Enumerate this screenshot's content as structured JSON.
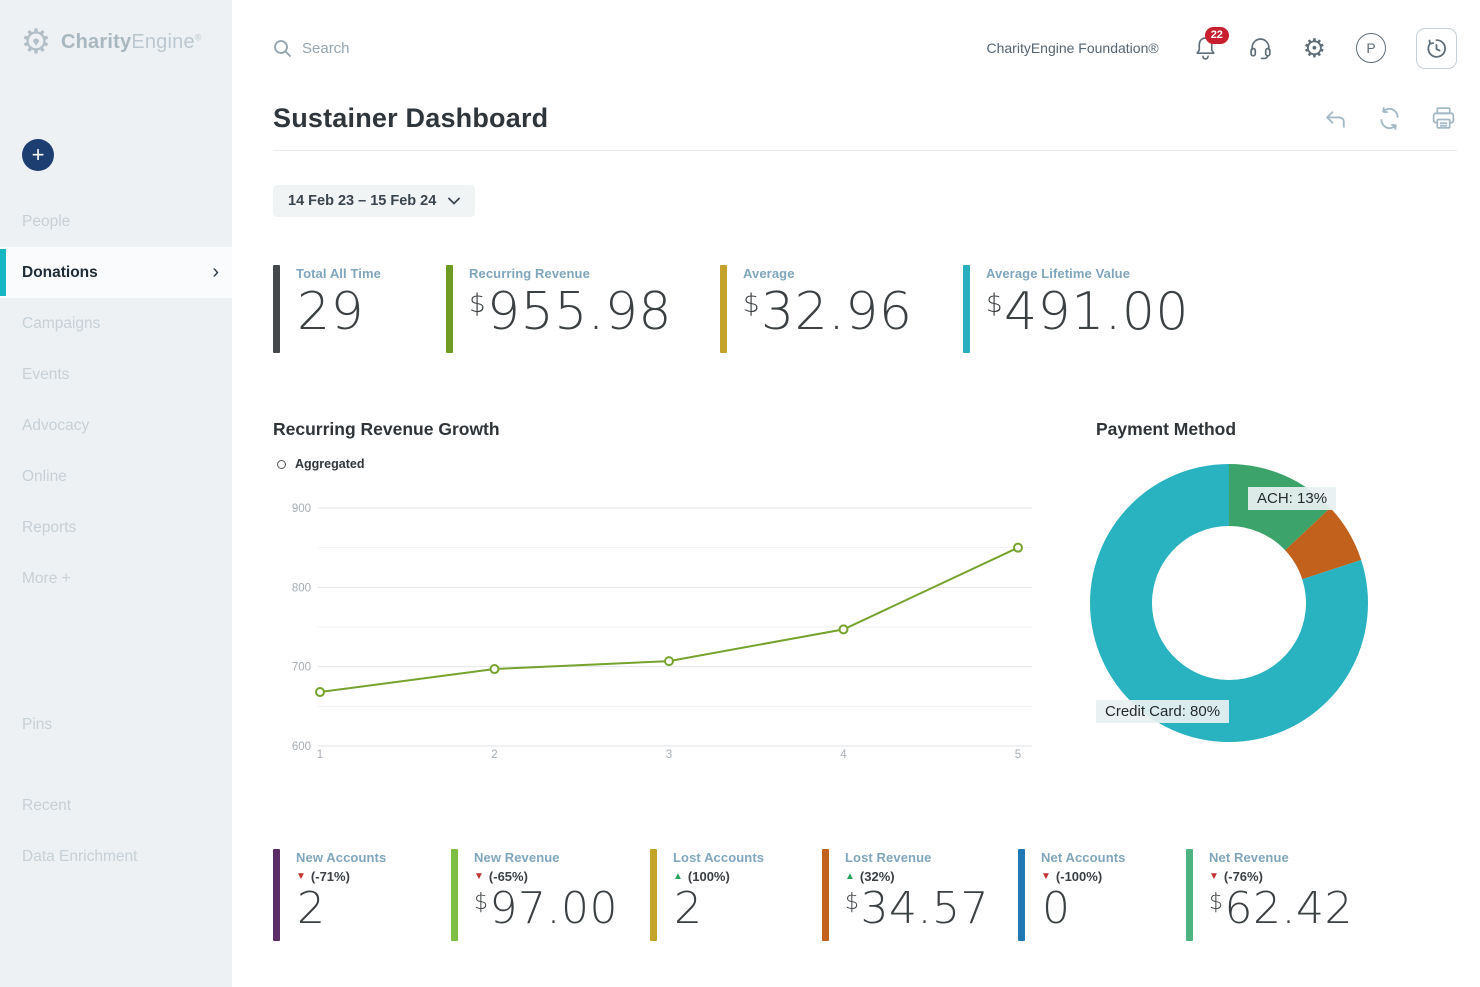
{
  "brand": {
    "name_bold": "Charity",
    "name_light": "Engine",
    "registered": "®"
  },
  "sidebar": {
    "items": [
      {
        "label": "People"
      },
      {
        "label": "Donations",
        "active": true
      },
      {
        "label": "Campaigns"
      },
      {
        "label": "Events"
      },
      {
        "label": "Advocacy"
      },
      {
        "label": "Online"
      },
      {
        "label": "Reports"
      },
      {
        "label": "More +"
      }
    ],
    "pins_label": "Pins",
    "footer_items": [
      {
        "label": "Recent"
      },
      {
        "label": "Data Enrichment"
      }
    ],
    "add_button_glyph": "+",
    "active_chevron": "›"
  },
  "topbar": {
    "search_placeholder": "Search",
    "org_name": "CharityEngine Foundation®",
    "notification_count": "22",
    "avatar_initial": "P",
    "icons": [
      "bell-icon",
      "headset-icon",
      "gear-icon",
      "avatar",
      "history-icon"
    ]
  },
  "page": {
    "title": "Sustainer Dashboard",
    "date_range": "14 Feb 23 – 15 Feb 24",
    "title_action_icons": [
      "undo-icon",
      "refresh-icon",
      "print-icon"
    ]
  },
  "kpis_top": [
    {
      "label": "Total All Time",
      "currency": "",
      "value": "29",
      "bar_color": "#45494c"
    },
    {
      "label": "Recurring Revenue",
      "currency": "$",
      "value": "955.98",
      "bar_color": "#6d9b24"
    },
    {
      "label": "Average",
      "currency": "$",
      "value": "32.96",
      "bar_color": "#c4a32a"
    },
    {
      "label": "Average Lifetime Value",
      "currency": "$",
      "value": "491.00",
      "bar_color": "#27afbd"
    }
  ],
  "kpis_bottom": [
    {
      "label": "New Accounts",
      "change": {
        "direction": "down",
        "glyph": "▼",
        "text": "(-71%)"
      },
      "currency": "",
      "value": "2",
      "bar_color": "#5c2d66"
    },
    {
      "label": "New Revenue",
      "change": {
        "direction": "down",
        "glyph": "▼",
        "text": "(-65%)"
      },
      "currency": "$",
      "value": "97.00",
      "bar_color": "#7cbf44"
    },
    {
      "label": "Lost Accounts",
      "change": {
        "direction": "up",
        "glyph": "▲",
        "text": "(100%)"
      },
      "currency": "",
      "value": "2",
      "bar_color": "#c4a32a"
    },
    {
      "label": "Lost Revenue",
      "change": {
        "direction": "up",
        "glyph": "▲",
        "text": "(32%)"
      },
      "currency": "$",
      "value": "34.57",
      "bar_color": "#c2601d"
    },
    {
      "label": "Net Accounts",
      "change": {
        "direction": "down",
        "glyph": "▼",
        "text": "(-100%)"
      },
      "currency": "",
      "value": "0",
      "bar_color": "#2079b4"
    },
    {
      "label": "Net Revenue",
      "change": {
        "direction": "down",
        "glyph": "▼",
        "text": "(-76%)"
      },
      "currency": "$",
      "value": "62.42",
      "bar_color": "#4db381"
    }
  ],
  "chart_data": [
    {
      "type": "line",
      "title": "Recurring Revenue Growth",
      "legend": [
        {
          "label": "Aggregated",
          "marker": "open-circle"
        }
      ],
      "x": [
        1,
        2,
        3,
        4,
        5
      ],
      "series": [
        {
          "name": "Aggregated",
          "values": [
            668,
            697,
            707,
            747,
            850
          ],
          "color": "#76a22e"
        }
      ],
      "ylim": [
        600,
        900
      ],
      "yticks": [
        600,
        700,
        800,
        900
      ],
      "grid": true,
      "gridline_step": 50,
      "legend_position": "top-left"
    },
    {
      "type": "pie",
      "donut": true,
      "title": "Payment Method",
      "start_angle_deg": -90,
      "direction": "clockwise",
      "slices": [
        {
          "label": "ACH",
          "value": 13,
          "color": "#3ca46a",
          "callout": "ACH: 13%"
        },
        {
          "label": "Other",
          "value": 7,
          "color": "#c2611c",
          "callout": ""
        },
        {
          "label": "Credit Card",
          "value": 80,
          "color": "#29b2bf",
          "callout": "Credit Card: 80%"
        }
      ]
    }
  ]
}
